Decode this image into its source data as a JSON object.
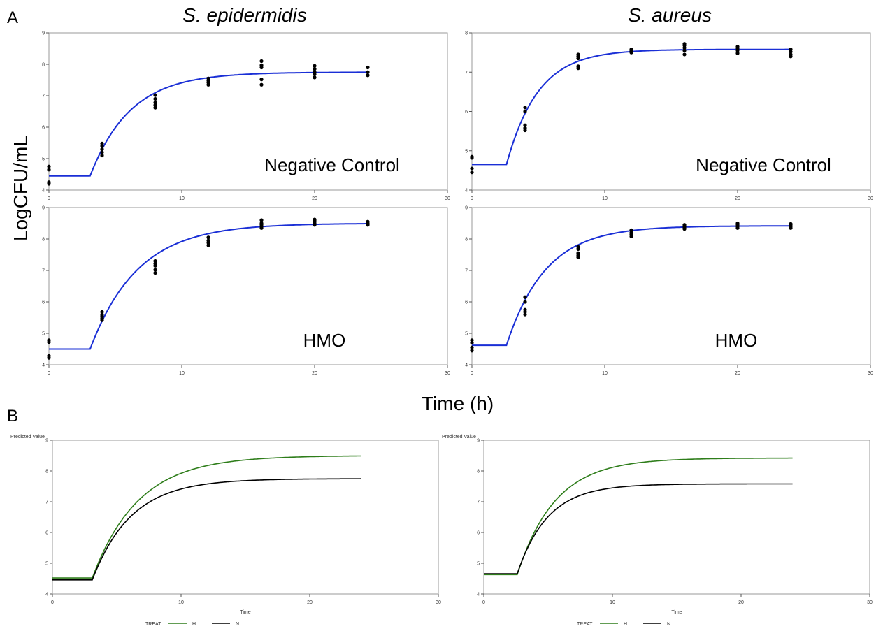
{
  "labels": {
    "panel_a": "A",
    "panel_b": "B",
    "col_left": "S. epidermidis",
    "col_right": "S. aureus",
    "y_axis": "LogCFU/mL",
    "x_axis": "Time (h)"
  },
  "chart_data": [
    {
      "type": "scatter",
      "panel": "A",
      "organism": "S. epidermidis",
      "annotation": "Negative Control",
      "xlim": [
        0,
        30
      ],
      "ylim": [
        4,
        9
      ],
      "xticks": [
        0,
        10,
        20,
        30
      ],
      "yticks": [
        4,
        5,
        6,
        7,
        8,
        9
      ],
      "fit": {
        "baseline": 4.45,
        "lag": 3.1,
        "plateau": 7.75,
        "rate": 0.33,
        "x_end": 24
      },
      "points": {
        "x": [
          0,
          0,
          0,
          0,
          4,
          4,
          4,
          4,
          4,
          8,
          8,
          8,
          8,
          8,
          12,
          12,
          12,
          12,
          16,
          16,
          16,
          16,
          16,
          20,
          20,
          20,
          20,
          20,
          24,
          24,
          24
        ],
        "y": [
          4.75,
          4.65,
          4.25,
          4.2,
          5.48,
          5.4,
          5.3,
          5.2,
          5.1,
          7.02,
          6.9,
          6.78,
          6.7,
          6.62,
          7.55,
          7.48,
          7.42,
          7.35,
          8.1,
          7.97,
          7.9,
          7.52,
          7.35,
          7.95,
          7.85,
          7.75,
          7.68,
          7.58,
          7.9,
          7.75,
          7.65
        ]
      }
    },
    {
      "type": "scatter",
      "panel": "A",
      "organism": "S. aureus",
      "annotation": "Negative Control",
      "xlim": [
        0,
        30
      ],
      "ylim": [
        4,
        8
      ],
      "xticks": [
        0,
        10,
        20,
        30
      ],
      "yticks": [
        4,
        5,
        6,
        7,
        8
      ],
      "fit": {
        "baseline": 4.65,
        "lag": 2.6,
        "plateau": 7.58,
        "rate": 0.42,
        "x_end": 24
      },
      "points": {
        "x": [
          0,
          0,
          0,
          0,
          4,
          4,
          4,
          4,
          4,
          8,
          8,
          8,
          8,
          8,
          12,
          12,
          12,
          12,
          16,
          16,
          16,
          16,
          16,
          20,
          20,
          20,
          20,
          24,
          24,
          24,
          24
        ],
        "y": [
          4.85,
          4.82,
          4.55,
          4.45,
          6.1,
          6.0,
          5.65,
          5.58,
          5.52,
          7.45,
          7.4,
          7.35,
          7.15,
          7.1,
          7.58,
          7.55,
          7.52,
          7.5,
          7.72,
          7.68,
          7.62,
          7.55,
          7.45,
          7.65,
          7.6,
          7.55,
          7.48,
          7.58,
          7.52,
          7.45,
          7.4
        ]
      }
    },
    {
      "type": "scatter",
      "panel": "A",
      "organism": "S. epidermidis",
      "annotation": "HMO",
      "xlim": [
        0,
        30
      ],
      "ylim": [
        4,
        9
      ],
      "xticks": [
        0,
        10,
        20,
        30
      ],
      "yticks": [
        4,
        5,
        6,
        7,
        8,
        9
      ],
      "fit": {
        "baseline": 4.5,
        "lag": 3.1,
        "plateau": 8.5,
        "rate": 0.28,
        "x_end": 24
      },
      "points": {
        "x": [
          0,
          0,
          0,
          0,
          4,
          4,
          4,
          4,
          4,
          8,
          8,
          8,
          8,
          8,
          12,
          12,
          12,
          12,
          16,
          16,
          16,
          16,
          16,
          20,
          20,
          20,
          20,
          20,
          24,
          24,
          24
        ],
        "y": [
          4.78,
          4.72,
          4.28,
          4.22,
          5.68,
          5.6,
          5.55,
          5.48,
          5.42,
          7.3,
          7.22,
          7.15,
          7.02,
          6.92,
          8.05,
          7.95,
          7.88,
          7.8,
          8.6,
          8.5,
          8.45,
          8.4,
          8.35,
          8.62,
          8.58,
          8.55,
          8.5,
          8.45,
          8.55,
          8.5,
          8.45
        ]
      }
    },
    {
      "type": "scatter",
      "panel": "A",
      "organism": "S. aureus",
      "annotation": "HMO",
      "xlim": [
        0,
        30
      ],
      "ylim": [
        4,
        9
      ],
      "xticks": [
        0,
        10,
        20,
        30
      ],
      "yticks": [
        4,
        5,
        6,
        7,
        8,
        9
      ],
      "fit": {
        "baseline": 4.62,
        "lag": 2.6,
        "plateau": 8.42,
        "rate": 0.34,
        "x_end": 24
      },
      "points": {
        "x": [
          0,
          0,
          0,
          0,
          4,
          4,
          4,
          4,
          4,
          8,
          8,
          8,
          8,
          8,
          12,
          12,
          12,
          12,
          16,
          16,
          16,
          16,
          16,
          20,
          20,
          20,
          20,
          24,
          24,
          24,
          24
        ],
        "y": [
          4.78,
          4.7,
          4.55,
          4.45,
          6.15,
          6.0,
          5.75,
          5.68,
          5.6,
          7.75,
          7.68,
          7.55,
          7.48,
          7.42,
          8.28,
          8.2,
          8.15,
          8.08,
          8.45,
          8.42,
          8.38,
          8.35,
          8.32,
          8.5,
          8.45,
          8.4,
          8.35,
          8.48,
          8.45,
          8.4,
          8.35
        ]
      }
    },
    {
      "type": "line",
      "panel": "B",
      "ylabel": "Predicted Value",
      "xlabel": "Time",
      "xlim": [
        0,
        30
      ],
      "ylim": [
        4,
        9
      ],
      "xticks": [
        0,
        10,
        20,
        30
      ],
      "yticks": [
        4,
        5,
        6,
        7,
        8,
        9
      ],
      "legend": {
        "title": "TREAT",
        "placement": "bottom"
      },
      "series": [
        {
          "name": "H",
          "color": "#2e7d1a",
          "fit": {
            "baseline": 4.52,
            "lag": 3.1,
            "plateau": 8.5,
            "rate": 0.28,
            "x_end": 24
          }
        },
        {
          "name": "N",
          "color": "#000000",
          "fit": {
            "baseline": 4.46,
            "lag": 3.1,
            "plateau": 7.75,
            "rate": 0.33,
            "x_end": 24
          }
        }
      ]
    },
    {
      "type": "line",
      "panel": "B",
      "ylabel": "Predicted Value",
      "xlabel": "Time",
      "xlim": [
        0,
        30
      ],
      "ylim": [
        4,
        9
      ],
      "xticks": [
        0,
        10,
        20,
        30
      ],
      "yticks": [
        4,
        5,
        6,
        7,
        8,
        9
      ],
      "legend": {
        "title": "TREAT",
        "placement": "bottom"
      },
      "series": [
        {
          "name": "H",
          "color": "#2e7d1a",
          "fit": {
            "baseline": 4.63,
            "lag": 2.6,
            "plateau": 8.42,
            "rate": 0.34,
            "x_end": 24
          }
        },
        {
          "name": "N",
          "color": "#000000",
          "fit": {
            "baseline": 4.66,
            "lag": 2.6,
            "plateau": 7.58,
            "rate": 0.42,
            "x_end": 24
          }
        }
      ]
    }
  ],
  "colors": {
    "fit_line": "#1a2fd6",
    "points": "#000000",
    "frame": "#9a9a9a",
    "tick_text": "#333333"
  }
}
